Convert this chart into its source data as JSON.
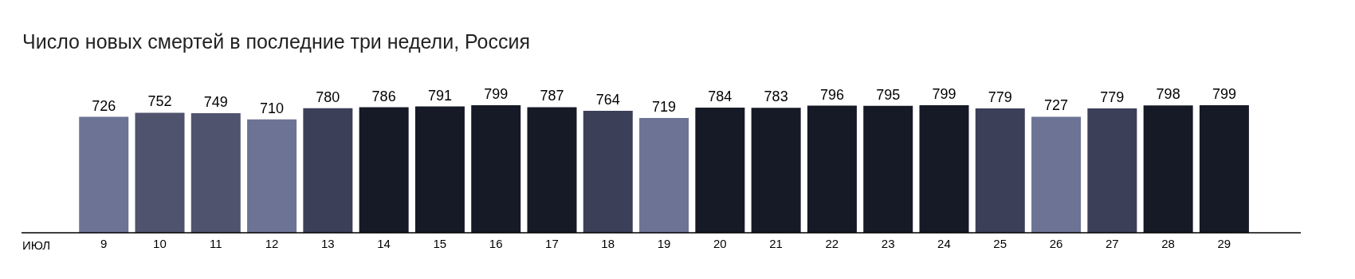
{
  "chart_data": {
    "type": "bar",
    "title": "Число новых смертей в последние три недели, Россия",
    "xlabel": "ИЮЛ",
    "categories": [
      "9",
      "10",
      "11",
      "12",
      "13",
      "14",
      "15",
      "16",
      "17",
      "18",
      "19",
      "20",
      "21",
      "22",
      "23",
      "24",
      "25",
      "26",
      "27",
      "28",
      "29"
    ],
    "values": [
      726,
      752,
      749,
      710,
      780,
      786,
      791,
      799,
      787,
      764,
      719,
      784,
      783,
      796,
      795,
      799,
      779,
      727,
      779,
      798,
      799
    ],
    "colors": [
      "#6d7394",
      "#50536d",
      "#50536d",
      "#6d7394",
      "#3c3f58",
      "#161a26",
      "#161a26",
      "#161a26",
      "#161a26",
      "#3c3f58",
      "#6d7394",
      "#161a26",
      "#161a26",
      "#161a26",
      "#161a26",
      "#161a26",
      "#3c3f58",
      "#6d7394",
      "#3c3f58",
      "#161a26",
      "#161a26"
    ],
    "data_labels": true
  }
}
